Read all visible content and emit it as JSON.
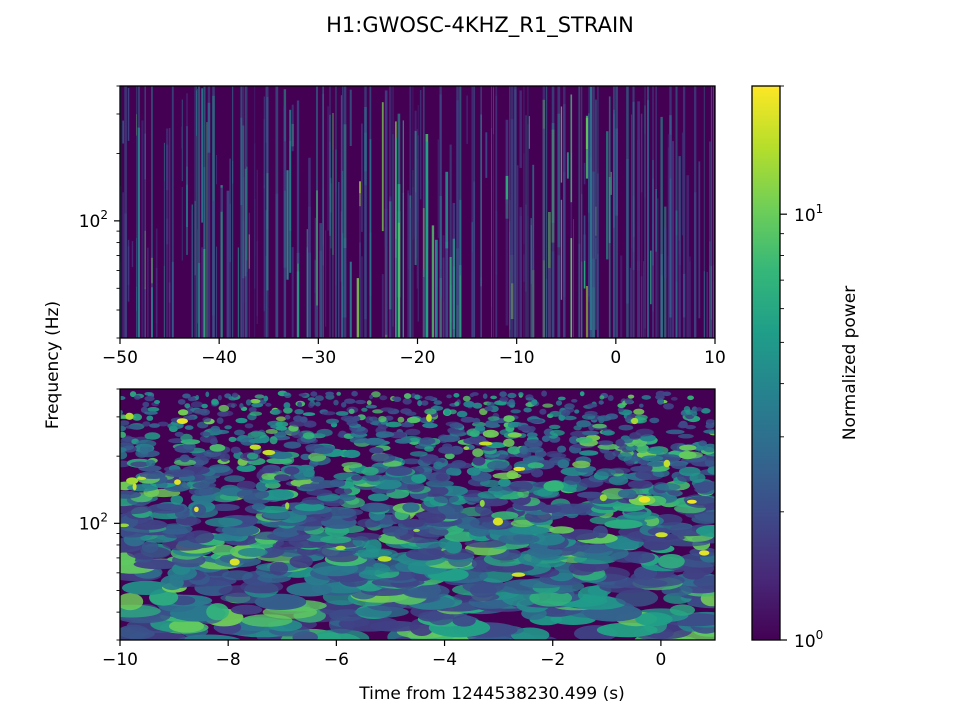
{
  "figure": {
    "title": "H1:GWOSC-4KHZ_R1_STRAIN",
    "ylabel": "Frequency (Hz)",
    "xlabel": "Time from 1244538230.499 (s)"
  },
  "chart_data": [
    {
      "type": "heatmap",
      "panel": "top",
      "xlim": [
        -50,
        10
      ],
      "x_ticks": [
        -50,
        -40,
        -30,
        -20,
        -10,
        0,
        10
      ],
      "x_tick_labels": [
        "−50",
        "−40",
        "−30",
        "−20",
        "−10",
        "0",
        "10"
      ],
      "yscale": "log",
      "ylim": [
        30,
        400
      ],
      "y_ticks": [
        100
      ],
      "y_tick_labels": [
        "10",
        "2"
      ],
      "ylabel": "Frequency (Hz)",
      "colormap": "viridis",
      "texture": "vertical-streaks"
    },
    {
      "type": "heatmap",
      "panel": "bottom",
      "xlim": [
        -10,
        1
      ],
      "x_ticks": [
        -10,
        -8,
        -6,
        -4,
        -2,
        0
      ],
      "x_tick_labels": [
        "−10",
        "−8",
        "−6",
        "−4",
        "−2",
        "0"
      ],
      "yscale": "log",
      "ylim": [
        30,
        400
      ],
      "y_ticks": [
        100
      ],
      "y_tick_labels": [
        "10",
        "2"
      ],
      "xlabel": "Time from 1244538230.499 (s)",
      "colormap": "viridis",
      "texture": "blobs"
    }
  ],
  "colorbar": {
    "label": "Normalized power",
    "scale": "log",
    "range": [
      1,
      20
    ],
    "ticks": [
      1,
      10
    ],
    "tick_labels": [
      [
        "10",
        "0"
      ],
      [
        "10",
        "1"
      ]
    ],
    "colormap": "viridis"
  },
  "colors": {
    "viridis": [
      "#440154",
      "#482878",
      "#3e4989",
      "#31688e",
      "#26828e",
      "#1f9e89",
      "#35b779",
      "#6ece58",
      "#b5de2b",
      "#fde725"
    ]
  }
}
